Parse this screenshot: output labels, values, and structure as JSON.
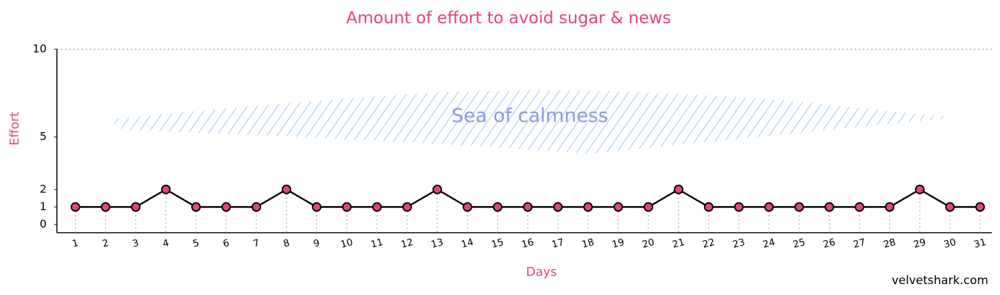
{
  "chart_data": {
    "type": "line",
    "title": "Amount of effort to avoid sugar & news",
    "x_label": "Days",
    "y_label": "Effort",
    "annotation": "Sea of calmness",
    "watermark": "velvetshark.com",
    "categories": [
      "1",
      "2",
      "3",
      "4",
      "5",
      "6",
      "7",
      "8",
      "9",
      "10",
      "11",
      "12",
      "13",
      "14",
      "15",
      "16",
      "17",
      "18",
      "19",
      "20",
      "21",
      "22",
      "23",
      "24",
      "25",
      "26",
      "27",
      "28",
      "29",
      "30",
      "31"
    ],
    "series": [
      {
        "name": "Effort",
        "color": "#000000",
        "marker_color": "#e0457b",
        "values": [
          1,
          1,
          1,
          2,
          1,
          1,
          1,
          2,
          1,
          1,
          1,
          1,
          2,
          1,
          1,
          1,
          1,
          1,
          1,
          1,
          2,
          1,
          1,
          1,
          1,
          1,
          1,
          1,
          2,
          1,
          1
        ]
      }
    ],
    "ylim": [
      0,
      10
    ],
    "yticks": [
      0,
      1,
      2,
      5,
      10
    ]
  }
}
